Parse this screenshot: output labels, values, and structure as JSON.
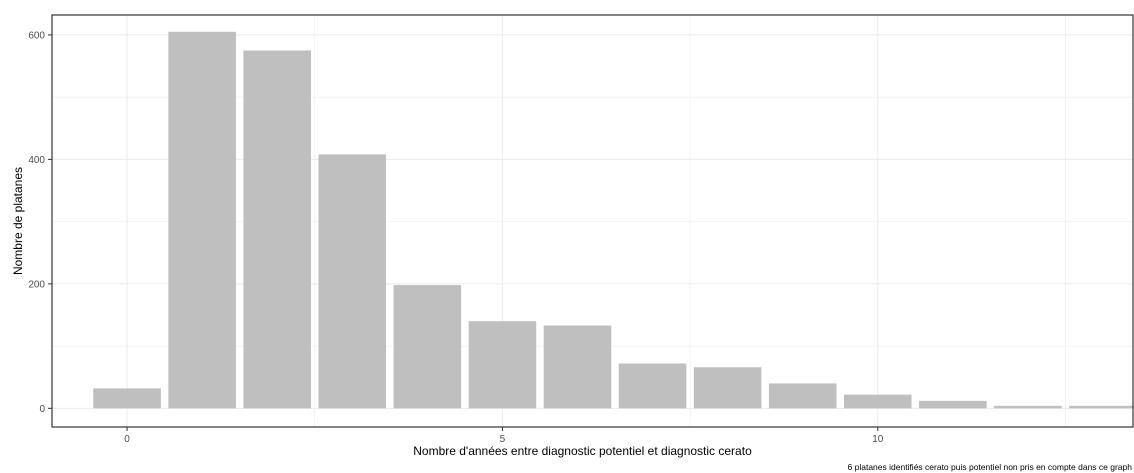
{
  "chart_data": {
    "type": "bar",
    "title": "",
    "xlabel": "Nombre d'années entre diagnostic potentiel et diagnostic cerato",
    "ylabel": "Nombre de platanes",
    "caption": "6 platanes identifiés cerato puis potentiel non pris en compte dans ce graph",
    "x": [
      0,
      1,
      2,
      3,
      4,
      5,
      6,
      7,
      8,
      9,
      10,
      11,
      12,
      13
    ],
    "values": [
      32,
      605,
      575,
      408,
      198,
      140,
      133,
      72,
      66,
      40,
      22,
      12,
      4,
      4
    ],
    "x_ticks": [
      0,
      5,
      10
    ],
    "y_ticks": [
      0,
      200,
      400,
      600
    ],
    "xlim": [
      -1.0,
      13.4
    ],
    "ylim": [
      -30,
      632
    ],
    "grid": true,
    "theme": "bw",
    "bar_color": "#bfbfbf",
    "grid_color": "#ebebeb",
    "border_color": "#333333"
  }
}
